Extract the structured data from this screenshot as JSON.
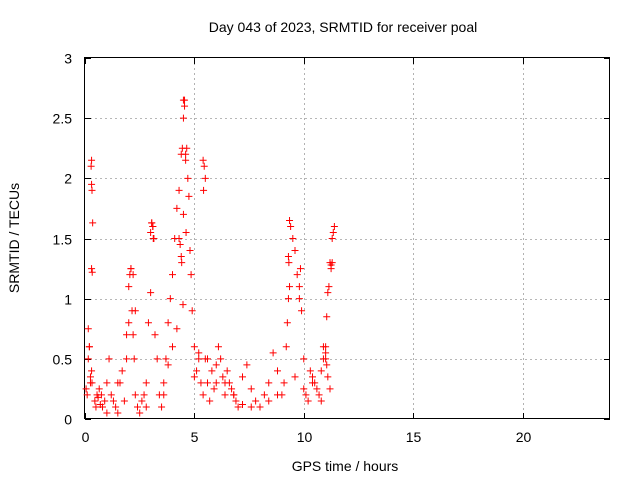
{
  "chart_data": {
    "type": "scatter",
    "title": "Day 043 of 2023, SRMTID for receiver poal",
    "xlabel": "GPS time / hours",
    "ylabel": "SRMTID / TECUs",
    "xlim": [
      0,
      24
    ],
    "ylim": [
      0,
      3
    ],
    "xticks": [
      0,
      5,
      10,
      15,
      20
    ],
    "yticks": [
      0,
      0.5,
      1,
      1.5,
      2,
      2.5,
      3
    ],
    "xtick_labels": [
      "0",
      "5",
      "10",
      "15",
      "20"
    ],
    "ytick_labels": [
      "0",
      "0.5",
      "1",
      "1.5",
      "2",
      "2.5",
      "3"
    ],
    "grid": true,
    "marker": "+",
    "color": "#ff0000",
    "series": [
      {
        "name": "SRMTID",
        "x": [
          0.05,
          0.1,
          0.15,
          0.2,
          0.25,
          0.3,
          0.28,
          0.3,
          0.32,
          0.35,
          0.3,
          0.33,
          0.3,
          0.32,
          0.45,
          0.5,
          0.55,
          0.6,
          0.65,
          0.7,
          0.75,
          0.8,
          0.9,
          1.0,
          1.1,
          1.2,
          1.3,
          1.4,
          1.5,
          1.6,
          1.7,
          1.8,
          1.9,
          2.0,
          2.05,
          2.1,
          2.15,
          2.2,
          2.25,
          2.3,
          2.4,
          2.5,
          2.6,
          2.7,
          2.8,
          2.9,
          3.0,
          3.05,
          3.1,
          3.15,
          3.2,
          3.3,
          3.4,
          3.5,
          3.6,
          3.7,
          3.8,
          3.9,
          4.0,
          4.1,
          4.2,
          4.3,
          4.4,
          4.45,
          4.5,
          4.55,
          4.6,
          4.65,
          4.7,
          4.75,
          4.8,
          4.85,
          4.9,
          5.0,
          5.1,
          5.2,
          5.3,
          5.4,
          5.5,
          5.6,
          5.7,
          5.8,
          5.9,
          6.0,
          6.1,
          6.2,
          6.3,
          6.4,
          6.5,
          6.6,
          6.7,
          6.8,
          6.9,
          7.0,
          7.2,
          7.4,
          7.6,
          7.8,
          8.0,
          8.2,
          8.4,
          8.6,
          8.8,
          9.0,
          9.1,
          9.2,
          9.25,
          9.3,
          9.35,
          9.4,
          9.5,
          9.6,
          9.7,
          9.8,
          9.9,
          10.0,
          10.1,
          10.2,
          10.3,
          10.4,
          10.5,
          10.6,
          10.7,
          10.8,
          10.9,
          11.0,
          11.05,
          11.1,
          11.15,
          11.2,
          11.25,
          11.3,
          11.35,
          11.4,
          11.3,
          11.25,
          4.5,
          4.55,
          4.6,
          4.5,
          4.62,
          5.4,
          5.45,
          5.5,
          5.42,
          3.0,
          3.05,
          3.1,
          3.12,
          2.0,
          2.1,
          2.2,
          2.3,
          1.9,
          0.2,
          0.25,
          0.15,
          1.0,
          1.5,
          2.8,
          3.6,
          3.8,
          4.0,
          4.2,
          5.0,
          5.2,
          5.6,
          6.0,
          6.4,
          6.8,
          7.2,
          7.6,
          8.0,
          8.4,
          8.8,
          9.6,
          10.0,
          10.4,
          10.8,
          11.0,
          11.2,
          4.3,
          4.35,
          4.4,
          4.42,
          4.48,
          9.3,
          9.32,
          9.35,
          9.8,
          9.85,
          10.9,
          11.0,
          11.05,
          11.1
        ],
        "y": [
          0.25,
          0.2,
          0.75,
          0.6,
          0.3,
          2.15,
          2.1,
          1.95,
          1.9,
          1.63,
          1.25,
          1.22,
          0.4,
          0.3,
          0.15,
          0.1,
          0.2,
          0.18,
          0.25,
          0.12,
          0.2,
          0.1,
          0.15,
          0.3,
          0.5,
          0.2,
          0.15,
          0.1,
          0.05,
          0.3,
          0.4,
          0.15,
          0.5,
          0.8,
          1.2,
          1.25,
          0.9,
          0.7,
          0.5,
          0.2,
          0.1,
          0.05,
          0.15,
          0.2,
          0.3,
          0.8,
          1.05,
          1.63,
          1.6,
          1.5,
          0.7,
          0.5,
          0.2,
          0.1,
          0.3,
          0.5,
          0.8,
          1.0,
          1.2,
          1.5,
          1.75,
          1.9,
          2.2,
          2.25,
          2.65,
          2.6,
          2.2,
          2.25,
          2.0,
          1.85,
          1.4,
          1.2,
          0.9,
          0.6,
          0.4,
          0.5,
          0.3,
          0.2,
          0.5,
          0.3,
          0.15,
          0.4,
          0.25,
          0.3,
          0.6,
          0.5,
          0.35,
          0.2,
          0.4,
          0.3,
          0.25,
          0.2,
          0.15,
          0.1,
          0.35,
          0.45,
          0.25,
          0.15,
          0.1,
          0.2,
          0.3,
          0.55,
          0.4,
          0.2,
          0.3,
          0.6,
          0.8,
          1.0,
          1.65,
          1.6,
          1.5,
          1.4,
          1.2,
          1.1,
          0.9,
          0.5,
          0.2,
          0.15,
          0.4,
          0.35,
          0.3,
          0.25,
          0.2,
          0.15,
          0.5,
          0.6,
          0.85,
          1.05,
          1.1,
          1.3,
          1.25,
          1.5,
          1.55,
          1.6,
          1.3,
          1.28,
          2.5,
          2.65,
          2.15,
          1.7,
          1.55,
          2.15,
          2.1,
          2.0,
          1.9,
          1.55,
          1.63,
          1.6,
          1.5,
          1.1,
          1.25,
          1.2,
          0.9,
          0.7,
          0.6,
          0.35,
          0.5,
          0.05,
          0.3,
          0.1,
          0.2,
          0.45,
          0.6,
          0.75,
          0.35,
          0.55,
          0.5,
          0.45,
          0.3,
          0.2,
          0.12,
          0.1,
          0.1,
          0.15,
          0.2,
          0.35,
          0.25,
          0.3,
          0.4,
          0.55,
          0.25,
          1.5,
          1.45,
          1.35,
          1.3,
          0.95,
          1.35,
          1.3,
          1.1,
          1.0,
          1.25,
          0.6,
          0.5,
          0.45,
          0.35
        ]
      }
    ]
  }
}
